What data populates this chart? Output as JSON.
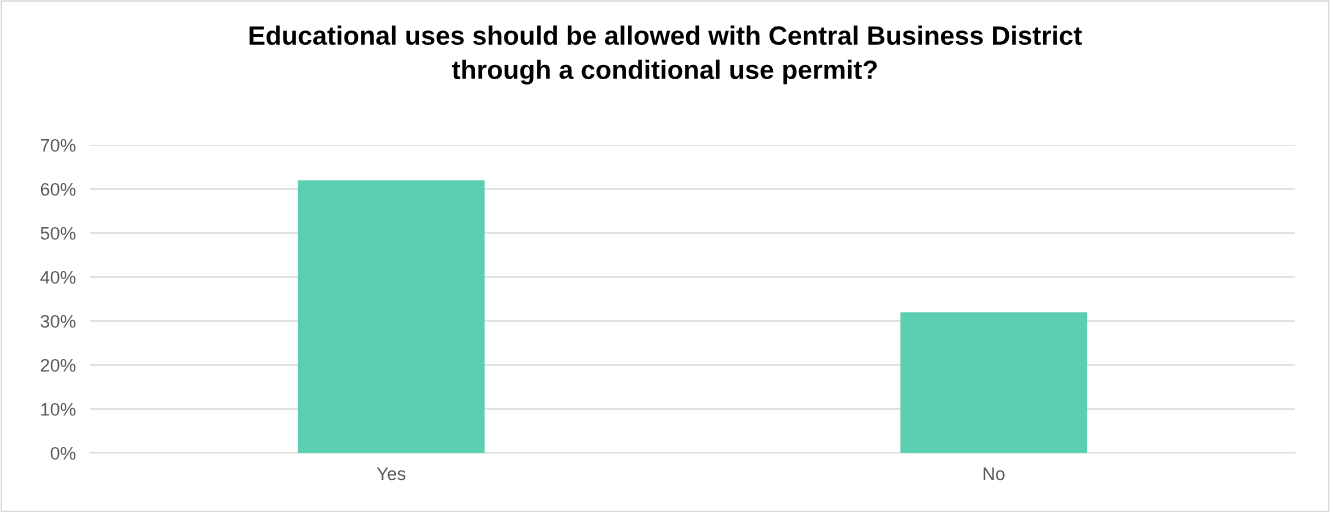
{
  "chart_data": {
    "type": "bar",
    "title": "Educational uses should be allowed with Central Business District\nthrough a conditional use permit?",
    "categories": [
      "Yes",
      "No"
    ],
    "values": [
      62,
      32
    ],
    "color": "#5ccfb2",
    "ylim": [
      0,
      70
    ],
    "yticks": [
      {
        "value": 0,
        "label": "0%"
      },
      {
        "value": 10,
        "label": "10%"
      },
      {
        "value": 20,
        "label": "20%"
      },
      {
        "value": 30,
        "label": "30%"
      },
      {
        "value": 40,
        "label": "40%"
      },
      {
        "value": 50,
        "label": "50%"
      },
      {
        "value": 60,
        "label": "60%"
      },
      {
        "value": 70,
        "label": "70%"
      }
    ],
    "grid": "y",
    "legend": false
  }
}
